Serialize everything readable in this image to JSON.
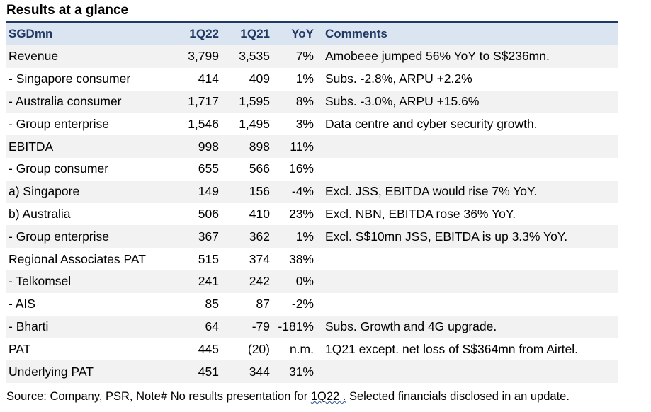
{
  "title": "Results at a glance",
  "header": {
    "label": "SGDmn",
    "col1": "1Q22",
    "col2": "1Q21",
    "col3": "YoY",
    "col4": "Comments"
  },
  "rows": [
    {
      "label": "Revenue",
      "q22": "3,799",
      "q21": "3,535",
      "yoy": "7%",
      "comment": "Amobeee jumped 56% YoY to S$236mn."
    },
    {
      "label": " - Singapore consumer",
      "q22": "414",
      "q21": "409",
      "yoy": "1%",
      "comment": "Subs. -2.8%, ARPU +2.2%"
    },
    {
      "label": " - Australia consumer",
      "q22": "1,717",
      "q21": "1,595",
      "yoy": "8%",
      "comment": "Subs. -3.0%, ARPU +15.6%"
    },
    {
      "label": " - Group enterprise",
      "q22": "1,546",
      "q21": "1,495",
      "yoy": "3%",
      "comment": "Data centre and cyber security growth."
    },
    {
      "label": "EBITDA",
      "q22": "998",
      "q21": "898",
      "yoy": "11%",
      "comment": ""
    },
    {
      "label": " - Group consumer",
      "q22": "655",
      "q21": "566",
      "yoy": "16%",
      "comment": ""
    },
    {
      "label": "a) Singapore",
      "q22": "149",
      "q21": "156",
      "yoy": "-4%",
      "comment": "Excl. JSS, EBITDA would rise 7% YoY."
    },
    {
      "label": "b) Australia",
      "q22": "506",
      "q21": "410",
      "yoy": "23%",
      "comment": "Excl. NBN, EBITDA rose  36% YoY."
    },
    {
      "label": " - Group enterprise",
      "q22": "367",
      "q21": "362",
      "yoy": "1%",
      "comment": "Excl. S$10mn JSS, EBITDA is up 3.3% YoY."
    },
    {
      "label": "Regional Associates PAT",
      "q22": "515",
      "q21": "374",
      "yoy": "38%",
      "comment": ""
    },
    {
      "label": " - Telkomsel",
      "q22": "241",
      "q21": "242",
      "yoy": "0%",
      "comment": ""
    },
    {
      "label": " - AIS",
      "q22": "85",
      "q21": "87",
      "yoy": "-2%",
      "comment": ""
    },
    {
      "label": " - Bharti",
      "q22": "64",
      "q21": "-79",
      "yoy": "-181%",
      "comment": "Subs. Growth and 4G upgrade."
    },
    {
      "label": "PAT",
      "q22": "445",
      "q21": "(20)",
      "yoy": "n.m.",
      "comment": "1Q21 except. net loss of S$364mn from Airtel."
    },
    {
      "label": "Underlying PAT",
      "q22": "451",
      "q21": "344",
      "yoy": "31%",
      "comment": ""
    }
  ],
  "source": {
    "prefix": "Source: Company, PSR, Note# No results presentation for ",
    "highlight": "1Q22 .",
    "suffix": " Selected financials disclosed in an update."
  },
  "colors": {
    "header_bg": "#dbe5f1",
    "header_text": "#1f3864",
    "alt_row_bg": "#f2f2f2"
  }
}
